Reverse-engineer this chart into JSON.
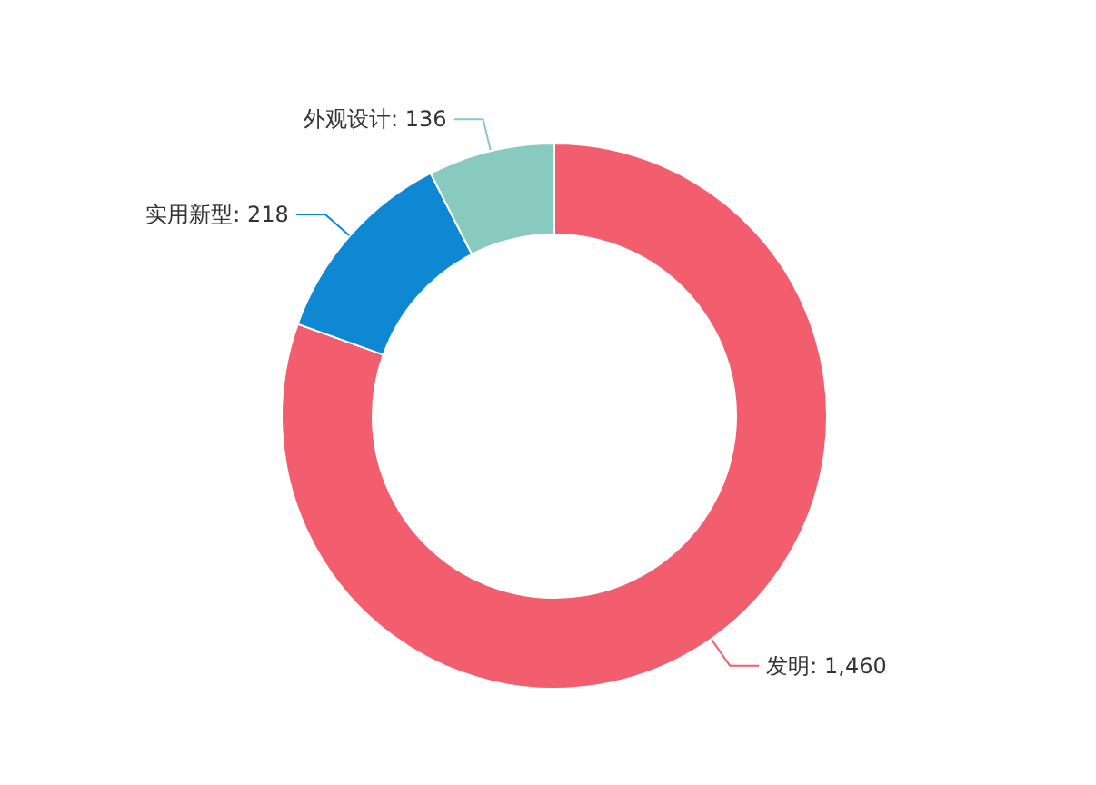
{
  "chart_data": {
    "type": "donut",
    "categories": [
      "发明",
      "实用新型",
      "外观设计"
    ],
    "values": [
      1460,
      218,
      136
    ],
    "colors": [
      "#f25e6e",
      "#0e88d3",
      "#88c9c0"
    ],
    "value_labels": [
      "1,460",
      "218",
      "136"
    ]
  }
}
